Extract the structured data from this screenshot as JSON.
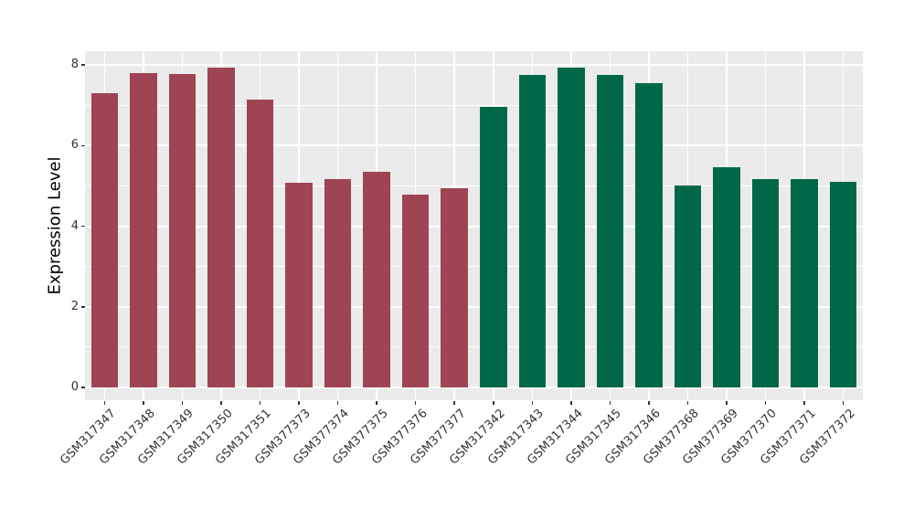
{
  "chart_data": {
    "type": "bar",
    "title": "",
    "xlabel": "",
    "ylabel": "Expression Level",
    "ylim": [
      -0.33,
      8.32
    ],
    "yticks_major": [
      0,
      2,
      4,
      6,
      8
    ],
    "yticks_minor": [
      1,
      3,
      5,
      7
    ],
    "grid": "on",
    "legend": "none",
    "panel_background": "#EBEBEB",
    "grid_color": "#FFFFFF",
    "text_color": "#333333",
    "categories": [
      "GSM317347",
      "GSM317348",
      "GSM317349",
      "GSM317350",
      "GSM317351",
      "GSM377373",
      "GSM377374",
      "GSM377375",
      "GSM377376",
      "GSM377377",
      "GSM317342",
      "GSM317343",
      "GSM317344",
      "GSM317345",
      "GSM317346",
      "GSM377368",
      "GSM377369",
      "GSM377370",
      "GSM377371",
      "GSM377372"
    ],
    "values": [
      7.3,
      7.8,
      7.78,
      7.94,
      7.14,
      5.07,
      5.17,
      5.36,
      4.79,
      4.95,
      6.97,
      7.76,
      7.93,
      7.76,
      7.55,
      5.01,
      5.46,
      5.18,
      5.16,
      5.1
    ],
    "group_of_bar": [
      "A",
      "A",
      "A",
      "A",
      "A",
      "A",
      "A",
      "A",
      "A",
      "A",
      "B",
      "B",
      "B",
      "B",
      "B",
      "B",
      "B",
      "B",
      "B",
      "B"
    ],
    "group_colors": {
      "A": "#9F4453",
      "B": "#006849"
    }
  }
}
